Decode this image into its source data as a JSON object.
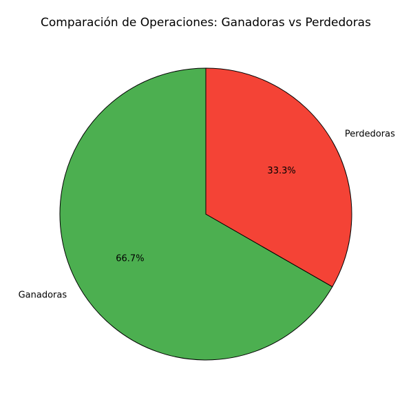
{
  "chart_data": {
    "type": "pie",
    "title": "Comparación de Operaciones: Ganadoras vs Perdedoras",
    "categories": [
      "Ganadoras",
      "Perdedoras"
    ],
    "values": [
      66.7,
      33.3
    ],
    "percent_labels": [
      "66.7%",
      "33.3%"
    ],
    "colors": [
      "#4caf50",
      "#f44336"
    ],
    "start_angle_deg": 90,
    "direction": "counterclockwise",
    "legend": "none"
  }
}
